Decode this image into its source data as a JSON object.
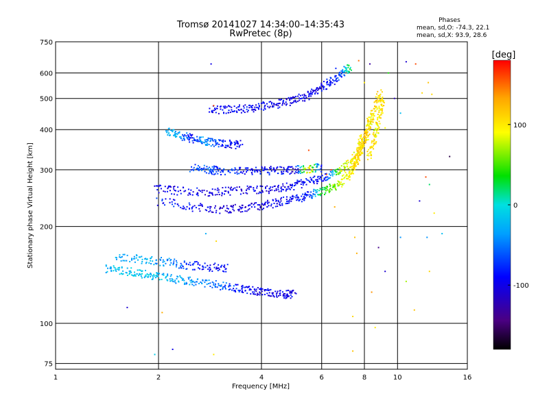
{
  "title": {
    "line1": "Tromsø 20141027 14:34:00–14:35:43",
    "line2": "RwPretec (8p)"
  },
  "phase_stats": {
    "heading": "Phases",
    "o_line": "mean, sd,O: -74.3, 22.1",
    "x_line": "mean, sd,X:  93.9, 28.6"
  },
  "chart_data": {
    "type": "scatter",
    "xlabel": "Frequency [MHz]",
    "ylabel": "Stationary phase Virtual Height [km]",
    "x_scale": "log2",
    "y_scale": "log",
    "xlim": [
      1,
      16
    ],
    "ylim": [
      72,
      750
    ],
    "x_ticks": [
      1,
      2,
      4,
      6,
      8,
      10,
      16
    ],
    "y_ticks": [
      75,
      100,
      200,
      300,
      400,
      500,
      600,
      750
    ],
    "grid": true,
    "colorbar": {
      "label": "[deg]",
      "range": [
        -180,
        180
      ],
      "ticks": [
        100,
        0,
        -100
      ],
      "colors": [
        "#000000",
        "#4b0082",
        "#0000ff",
        "#00a0ff",
        "#00e0e0",
        "#00e000",
        "#ffff00",
        "#ffa500",
        "#ff0000"
      ]
    },
    "traces": [
      {
        "x": [
          2.0,
          2.5,
          3.0,
          3.5,
          4.0,
          4.5,
          5.0,
          5.5,
          6.0,
          6.5,
          7.0,
          7.4,
          7.7,
          7.8
        ],
        "y": [
          240,
          230,
          226,
          228,
          232,
          238,
          244,
          250,
          257,
          266,
          280,
          300,
          335,
          380
        ],
        "phase": [
          -85,
          -88,
          -110,
          -105,
          -100,
          -95,
          -90,
          -90,
          30,
          60,
          90,
          100,
          110,
          95
        ]
      },
      {
        "x": [
          1.95,
          2.3,
          2.8,
          3.3,
          3.9,
          4.5,
          5.0,
          5.6,
          6.2,
          6.8,
          7.3,
          7.8,
          8.1,
          8.3
        ],
        "y": [
          262,
          258,
          256,
          258,
          260,
          263,
          268,
          276,
          286,
          300,
          318,
          345,
          380,
          430
        ],
        "phase": [
          -100,
          -95,
          -100,
          -105,
          -100,
          -100,
          -95,
          -90,
          -80,
          70,
          90,
          100,
          105,
          110
        ]
      },
      {
        "x": [
          2.5,
          2.8,
          3.0,
          3.5,
          4.0,
          4.5,
          5.0,
          5.5,
          6.0
        ],
        "y": [
          305,
          300,
          298,
          298,
          298,
          299,
          300,
          302,
          305
        ],
        "phase": [
          -70,
          -60,
          -75,
          -85,
          -90,
          -95,
          -110,
          120,
          -100
        ]
      },
      {
        "x": [
          2.8,
          3.2,
          3.6,
          4.0,
          4.5,
          5.0,
          5.5,
          5.9,
          6.4,
          6.9,
          7.3
        ],
        "y": [
          460,
          462,
          465,
          472,
          482,
          495,
          512,
          535,
          565,
          600,
          630
        ],
        "phase": [
          -100,
          -95,
          -95,
          -95,
          -100,
          -100,
          -100,
          -100,
          -90,
          -60,
          40
        ]
      },
      {
        "x": [
          7.4,
          7.7,
          8.0,
          8.3,
          8.6,
          8.9
        ],
        "y": [
          300,
          340,
          380,
          420,
          470,
          520
        ],
        "phase": [
          100,
          110,
          120,
          95,
          105,
          115
        ]
      },
      {
        "x": [
          8.2,
          8.5,
          8.7,
          8.9,
          9.1
        ],
        "y": [
          330,
          360,
          400,
          450,
          500
        ],
        "phase": [
          100,
          115,
          90,
          105,
          110
        ]
      },
      {
        "x": [
          1.4,
          1.6,
          1.8,
          2.0,
          2.3,
          2.6,
          3.0,
          3.4,
          3.8,
          4.2,
          4.7,
          5.0
        ],
        "y": [
          148,
          145,
          142,
          140,
          137,
          134,
          131,
          128,
          126,
          124,
          123,
          123
        ],
        "phase": [
          -25,
          -20,
          -15,
          -20,
          -30,
          -40,
          -55,
          -80,
          -95,
          -100,
          -100,
          -100
        ]
      },
      {
        "x": [
          1.5,
          1.8,
          2.1,
          2.4,
          2.8,
          3.2
        ],
        "y": [
          160,
          158,
          155,
          152,
          150,
          148
        ],
        "phase": [
          -30,
          -25,
          -40,
          -70,
          -95,
          -90
        ]
      },
      {
        "x": [
          2.1,
          2.3,
          2.5,
          2.7,
          2.9,
          3.2,
          3.5
        ],
        "y": [
          395,
          385,
          375,
          370,
          365,
          360,
          360
        ],
        "phase": [
          -30,
          -30,
          -90,
          -40,
          -60,
          -90,
          -95
        ]
      }
    ],
    "scatter_points": [
      {
        "x": 2.85,
        "y": 640,
        "phase": -100
      },
      {
        "x": 6.6,
        "y": 620,
        "phase": -80
      },
      {
        "x": 7.7,
        "y": 655,
        "phase": 150
      },
      {
        "x": 8.3,
        "y": 640,
        "phase": -130
      },
      {
        "x": 10.6,
        "y": 650,
        "phase": -110
      },
      {
        "x": 11.3,
        "y": 640,
        "phase": 160
      },
      {
        "x": 9.4,
        "y": 600,
        "phase": 40
      },
      {
        "x": 12.3,
        "y": 560,
        "phase": 120
      },
      {
        "x": 10.2,
        "y": 450,
        "phase": -20
      },
      {
        "x": 11.8,
        "y": 520,
        "phase": 110
      },
      {
        "x": 14.2,
        "y": 330,
        "phase": -160
      },
      {
        "x": 12.1,
        "y": 285,
        "phase": 160
      },
      {
        "x": 12.4,
        "y": 270,
        "phase": 20
      },
      {
        "x": 11.6,
        "y": 240,
        "phase": -110
      },
      {
        "x": 6.55,
        "y": 230,
        "phase": 130
      },
      {
        "x": 7.5,
        "y": 185,
        "phase": 120
      },
      {
        "x": 7.6,
        "y": 165,
        "phase": 130
      },
      {
        "x": 8.8,
        "y": 172,
        "phase": -140
      },
      {
        "x": 10.2,
        "y": 185,
        "phase": -40
      },
      {
        "x": 12.2,
        "y": 185,
        "phase": -40
      },
      {
        "x": 11.2,
        "y": 110,
        "phase": 120
      },
      {
        "x": 8.6,
        "y": 97,
        "phase": 100
      },
      {
        "x": 7.4,
        "y": 105,
        "phase": 110
      },
      {
        "x": 8.4,
        "y": 125,
        "phase": 140
      },
      {
        "x": 9.2,
        "y": 145,
        "phase": -110
      },
      {
        "x": 10.6,
        "y": 135,
        "phase": 70
      },
      {
        "x": 7.4,
        "y": 82,
        "phase": 120
      },
      {
        "x": 12.4,
        "y": 145,
        "phase": 110
      },
      {
        "x": 1.95,
        "y": 80,
        "phase": -10
      },
      {
        "x": 2.2,
        "y": 83,
        "phase": -100
      },
      {
        "x": 2.9,
        "y": 80,
        "phase": 100
      },
      {
        "x": 2.05,
        "y": 108,
        "phase": 130
      },
      {
        "x": 1.62,
        "y": 112,
        "phase": -110
      },
      {
        "x": 2.75,
        "y": 190,
        "phase": -30
      },
      {
        "x": 2.95,
        "y": 180,
        "phase": 110
      },
      {
        "x": 2.9,
        "y": 475,
        "phase": 160
      },
      {
        "x": 5.5,
        "y": 345,
        "phase": 160
      },
      {
        "x": 6.2,
        "y": 290,
        "phase": 155
      },
      {
        "x": 6.4,
        "y": 300,
        "phase": 165
      },
      {
        "x": 9.2,
        "y": 405,
        "phase": 90
      },
      {
        "x": 8.7,
        "y": 420,
        "phase": 130
      },
      {
        "x": 13.5,
        "y": 190,
        "phase": -20
      },
      {
        "x": 12.8,
        "y": 220,
        "phase": 100
      },
      {
        "x": 9.8,
        "y": 500,
        "phase": -120
      },
      {
        "x": 12.6,
        "y": 515,
        "phase": 110
      },
      {
        "x": 8.0,
        "y": 560,
        "phase": 100
      }
    ]
  }
}
